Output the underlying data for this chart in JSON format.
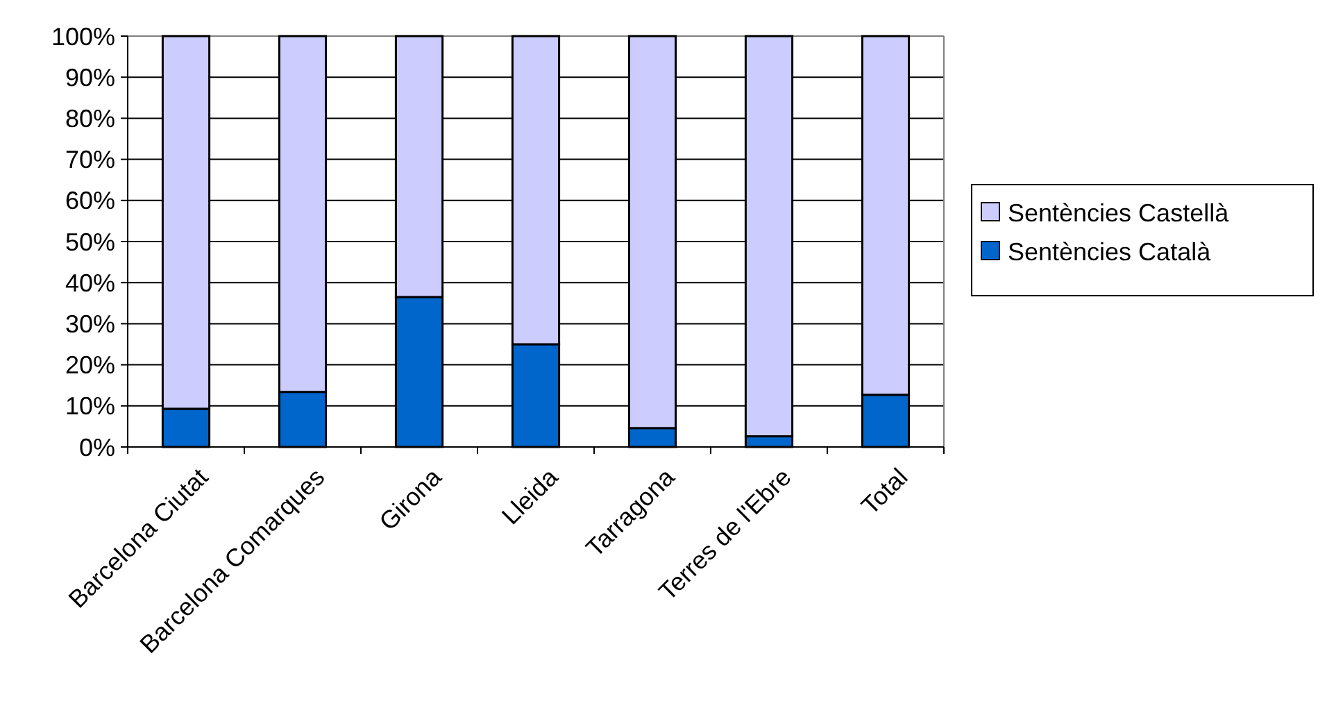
{
  "chart_data": {
    "type": "bar",
    "stacked": true,
    "categories": [
      "Barcelona Ciutat",
      "Barcelona Comarques",
      "Girona",
      "Lleida",
      "Tarragona",
      "Terres de l'Ebre",
      "Total"
    ],
    "series": [
      {
        "name": "Sentències Català",
        "color": "#0066cc",
        "values": [
          9.3,
          13.4,
          36.5,
          25.0,
          4.6,
          2.6,
          12.7
        ]
      },
      {
        "name": "Sentències Castellà",
        "color": "#ccccff",
        "values": [
          90.7,
          86.6,
          63.5,
          75.0,
          95.4,
          97.4,
          87.3
        ]
      }
    ],
    "ylim": [
      0,
      100
    ],
    "yticks": [
      {
        "value": 0,
        "label": "0%"
      },
      {
        "value": 10,
        "label": "10%"
      },
      {
        "value": 20,
        "label": "20%"
      },
      {
        "value": 30,
        "label": "30%"
      },
      {
        "value": 40,
        "label": "40%"
      },
      {
        "value": 50,
        "label": "50%"
      },
      {
        "value": 60,
        "label": "60%"
      },
      {
        "value": 70,
        "label": "70%"
      },
      {
        "value": 80,
        "label": "80%"
      },
      {
        "value": 90,
        "label": "90%"
      },
      {
        "value": 100,
        "label": "100%"
      }
    ],
    "grid": "y",
    "legend": "right"
  }
}
